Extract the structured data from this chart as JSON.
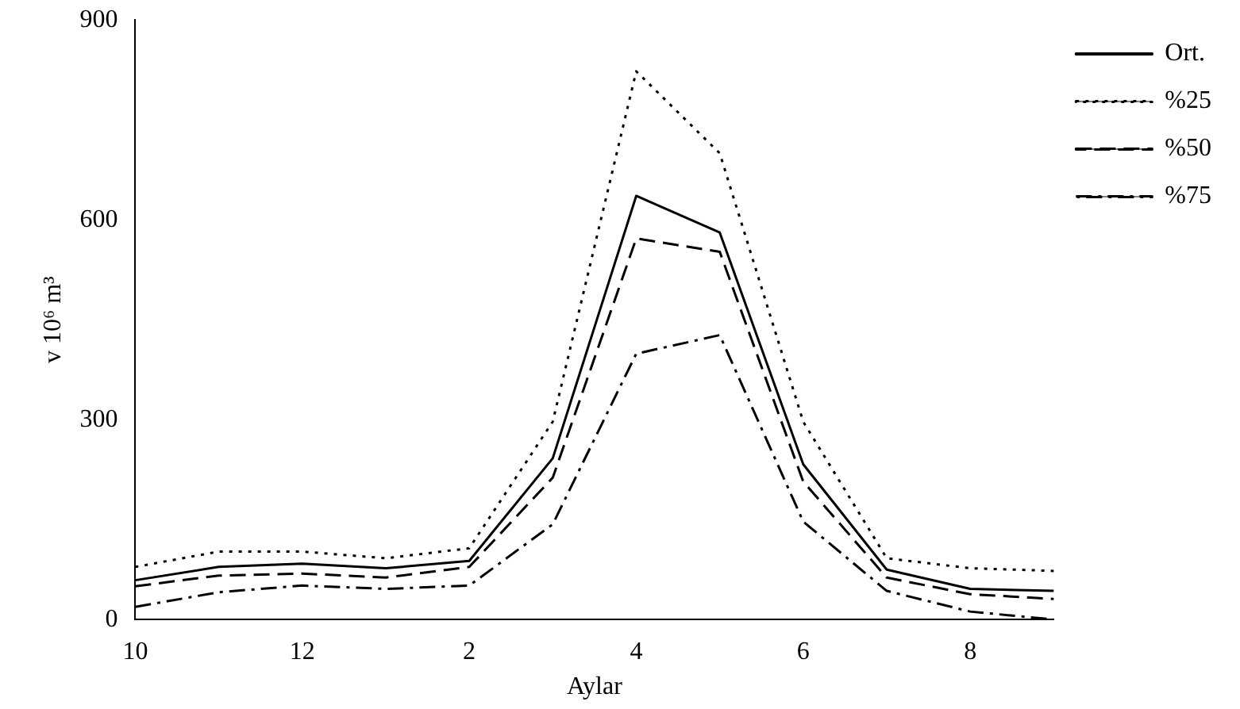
{
  "chart_data": {
    "type": "line",
    "xlabel": "Aylar",
    "ylabel": "v 10⁶ m³",
    "categories": [
      "10",
      null,
      "12",
      null,
      "2",
      null,
      "4",
      null,
      "6",
      null,
      "8",
      null
    ],
    "ylim": [
      0,
      900
    ],
    "yticks": [
      0,
      300,
      600,
      900
    ],
    "grid": false,
    "legend": "top right",
    "marker": "none",
    "series": [
      {
        "name": "Ort.",
        "color": "#000000",
        "line_style": "solid",
        "values": [
          59,
          79,
          84,
          77,
          88,
          242,
          636,
          581,
          233,
          75,
          46,
          43
        ]
      },
      {
        "name": "%25",
        "color": "#000000",
        "line_style": "dotted",
        "values": [
          79,
          102,
          102,
          92,
          107,
          297,
          823,
          700,
          297,
          92,
          77,
          73
        ]
      },
      {
        "name": "%50",
        "color": "#000000",
        "line_style": "dashed",
        "values": [
          50,
          66,
          69,
          63,
          79,
          213,
          572,
          552,
          207,
          63,
          38,
          31
        ]
      },
      {
        "name": "%75",
        "color": "#000000",
        "line_style": "dashdot",
        "values": [
          19,
          41,
          51,
          46,
          51,
          143,
          399,
          427,
          147,
          43,
          12,
          0
        ]
      }
    ]
  }
}
